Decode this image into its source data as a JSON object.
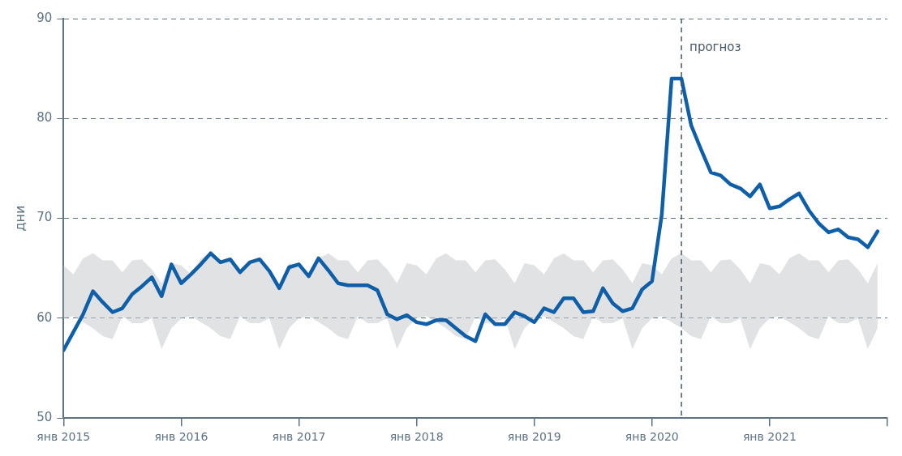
{
  "chart_data": {
    "type": "line",
    "ylabel": "дни",
    "x": [
      "2015-01",
      "2015-02",
      "2015-03",
      "2015-04",
      "2015-05",
      "2015-06",
      "2015-07",
      "2015-08",
      "2015-09",
      "2015-10",
      "2015-11",
      "2015-12",
      "2016-01",
      "2016-02",
      "2016-03",
      "2016-04",
      "2016-05",
      "2016-06",
      "2016-07",
      "2016-08",
      "2016-09",
      "2016-10",
      "2016-11",
      "2016-12",
      "2017-01",
      "2017-02",
      "2017-03",
      "2017-04",
      "2017-05",
      "2017-06",
      "2017-07",
      "2017-08",
      "2017-09",
      "2017-10",
      "2017-11",
      "2017-12",
      "2018-01",
      "2018-02",
      "2018-03",
      "2018-04",
      "2018-05",
      "2018-06",
      "2018-07",
      "2018-08",
      "2018-09",
      "2018-10",
      "2018-11",
      "2018-12",
      "2019-01",
      "2019-02",
      "2019-03",
      "2019-04",
      "2019-05",
      "2019-06",
      "2019-07",
      "2019-08",
      "2019-09",
      "2019-10",
      "2019-11",
      "2019-12",
      "2020-01",
      "2020-02",
      "2020-03",
      "2020-04",
      "2020-05",
      "2020-06",
      "2020-07",
      "2020-08",
      "2020-09",
      "2020-10",
      "2020-11",
      "2020-12",
      "2021-01",
      "2021-02",
      "2021-03",
      "2021-04",
      "2021-05",
      "2021-06",
      "2021-07",
      "2021-08",
      "2021-09",
      "2021-10",
      "2021-11",
      "2021-12"
    ],
    "series": [
      {
        "color": "#0f5ea8",
        "values": [
          56.8,
          58.6,
          60.4,
          62.7,
          61.6,
          60.6,
          61.0,
          62.4,
          63.2,
          64.1,
          62.2,
          65.4,
          63.5,
          64.4,
          65.4,
          66.5,
          65.6,
          65.9,
          64.6,
          65.6,
          65.9,
          64.7,
          63.0,
          65.1,
          65.4,
          64.2,
          66.0,
          64.8,
          63.5,
          63.3,
          63.3,
          63.3,
          62.8,
          60.4,
          59.9,
          60.3,
          59.6,
          59.4,
          59.8,
          59.8,
          59.0,
          58.2,
          57.7,
          60.4,
          59.4,
          59.4,
          60.6,
          60.2,
          59.6,
          61.0,
          60.6,
          62.0,
          62.0,
          60.6,
          60.7,
          63.0,
          61.5,
          60.7,
          61.0,
          62.9,
          63.7,
          70.4,
          84.0,
          84.0,
          79.3,
          76.9,
          74.6,
          74.3,
          73.4,
          73.0,
          72.2,
          73.4,
          71.0,
          71.2,
          71.9,
          72.5,
          70.8,
          69.5,
          68.6,
          68.9,
          68.1,
          67.9,
          67.1,
          68.7
        ],
        "lower": [
          60.0,
          60.2,
          59.6,
          59.0,
          58.2,
          57.9,
          60.2,
          59.5,
          59.5,
          60.0,
          56.9,
          59.0,
          60.0,
          60.2,
          59.6,
          59.0,
          58.2,
          57.9,
          60.2,
          59.5,
          59.5,
          60.0,
          56.9,
          59.0,
          60.0,
          60.2,
          59.6,
          59.0,
          58.2,
          57.9,
          60.2,
          59.5,
          59.5,
          60.0,
          56.9,
          59.0,
          60.0,
          60.2,
          59.6,
          59.0,
          58.2,
          57.9,
          60.2,
          59.5,
          59.5,
          60.0,
          56.9,
          59.0,
          60.0,
          60.2,
          59.6,
          59.0,
          58.2,
          57.9,
          60.2,
          59.5,
          59.5,
          60.0,
          56.9,
          59.0,
          60.0,
          60.2,
          59.6,
          59.0,
          58.2,
          57.9,
          60.2,
          59.5,
          59.5,
          60.0,
          56.9,
          59.0,
          60.0,
          60.2,
          59.6,
          59.0,
          58.2,
          57.9,
          60.2,
          59.5,
          59.5,
          60.0,
          56.9,
          59.0
        ],
        "upper": [
          65.3,
          64.4,
          66.0,
          66.5,
          65.8,
          65.8,
          64.6,
          65.8,
          65.9,
          64.9,
          63.5,
          65.5,
          65.3,
          64.4,
          66.0,
          66.5,
          65.8,
          65.8,
          64.6,
          65.8,
          65.9,
          64.9,
          63.5,
          65.5,
          65.3,
          64.4,
          66.0,
          66.5,
          65.8,
          65.8,
          64.6,
          65.8,
          65.9,
          64.9,
          63.5,
          65.5,
          65.3,
          64.4,
          66.0,
          66.5,
          65.8,
          65.8,
          64.6,
          65.8,
          65.9,
          64.9,
          63.5,
          65.5,
          65.3,
          64.4,
          66.0,
          66.5,
          65.8,
          65.8,
          64.6,
          65.8,
          65.9,
          64.9,
          63.5,
          65.5,
          65.3,
          64.4,
          66.0,
          66.5,
          65.8,
          65.8,
          64.6,
          65.8,
          65.9,
          64.9,
          63.5,
          65.5,
          65.3,
          64.4,
          66.0,
          66.5,
          65.8,
          65.8,
          64.6,
          65.8,
          65.9,
          64.9,
          63.5,
          65.5
        ]
      }
    ],
    "xlim": [
      "2015-01",
      "2022-01"
    ],
    "xticks": [
      {
        "value": "2015-01",
        "label": "янв 2015"
      },
      {
        "value": "2016-01",
        "label": "янв 2016"
      },
      {
        "value": "2017-01",
        "label": "янв 2017"
      },
      {
        "value": "2018-01",
        "label": "янв 2018"
      },
      {
        "value": "2019-01",
        "label": "янв 2019"
      },
      {
        "value": "2020-01",
        "label": "янв 2020"
      },
      {
        "value": "2021-01",
        "label": "янв 2021"
      },
      {
        "value": "2022-01",
        "label": null
      }
    ],
    "ylim": [
      50,
      90
    ],
    "yticks": [
      50,
      60,
      70,
      80,
      90
    ],
    "grid": "y",
    "line_style": "solid",
    "marker": "none",
    "ref_lines": [
      {
        "axis": "x",
        "value": "2020-04",
        "label": "прогноз",
        "color": "#4a5866",
        "line_style": "dashed"
      }
    ]
  }
}
